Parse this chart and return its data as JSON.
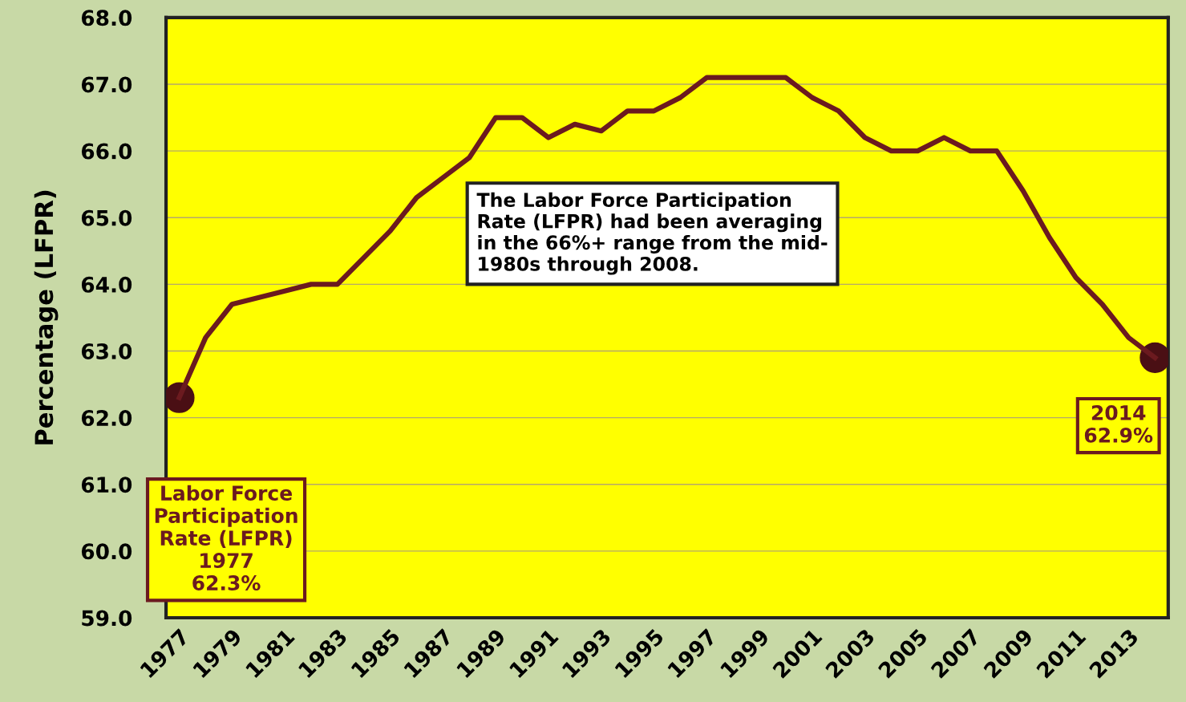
{
  "chart_data": {
    "type": "line",
    "ylabel": "Percentage (LFPR)",
    "categories": [
      "1977",
      null,
      "1979",
      null,
      "1981",
      null,
      "1983",
      null,
      "1985",
      null,
      "1987",
      null,
      "1989",
      null,
      "1991",
      null,
      "1993",
      null,
      "1995",
      null,
      "1997",
      null,
      "1999",
      null,
      "2001",
      null,
      "2003",
      null,
      "2005",
      null,
      "2007",
      null,
      "2009",
      null,
      "2011",
      null,
      "2013",
      null
    ],
    "series": [
      {
        "color": "#6b1a1f",
        "values": [
          62.3,
          63.2,
          63.7,
          63.8,
          63.9,
          64.0,
          64.0,
          64.4,
          64.8,
          65.3,
          65.6,
          65.9,
          66.5,
          66.5,
          66.2,
          66.4,
          66.3,
          66.6,
          66.6,
          66.8,
          67.1,
          67.1,
          67.1,
          67.1,
          66.8,
          66.6,
          66.2,
          66.0,
          66.0,
          66.2,
          66.0,
          66.0,
          65.4,
          64.7,
          64.1,
          63.7,
          63.2,
          62.9
        ]
      },
      {
        "type": "scatter",
        "marker": "circle",
        "color": "#4a0f14",
        "values": [
          62.3,
          null,
          null,
          null,
          null,
          null,
          null,
          null,
          null,
          null,
          null,
          null,
          null,
          null,
          null,
          null,
          null,
          null,
          null,
          null,
          null,
          null,
          null,
          null,
          null,
          null,
          null,
          null,
          null,
          null,
          null,
          null,
          null,
          null,
          null,
          null,
          null,
          62.9
        ]
      }
    ],
    "ylim": [
      59,
      68
    ],
    "yticks": [
      {
        "value": 59,
        "label": "59.0"
      },
      {
        "value": 60,
        "label": "60.0"
      },
      {
        "value": 61,
        "label": "61.0"
      },
      {
        "value": 62,
        "label": "62.0"
      },
      {
        "value": 63,
        "label": "63.0"
      },
      {
        "value": 64,
        "label": "64.0"
      },
      {
        "value": 65,
        "label": "65.0"
      },
      {
        "value": 66,
        "label": "66.0"
      },
      {
        "value": 67,
        "label": "67.0"
      },
      {
        "value": 68,
        "label": "68.0"
      }
    ],
    "grid": "y",
    "annotations": [
      "Labor Force\nParticipation\nRate (LFPR)\n1977\n62.3%",
      "The Labor Force Participation\nRate (LFPR) had been averaging\nin the 66%+ range from the mid-\n1980s through 2008.",
      "2014\n62.9%"
    ]
  }
}
